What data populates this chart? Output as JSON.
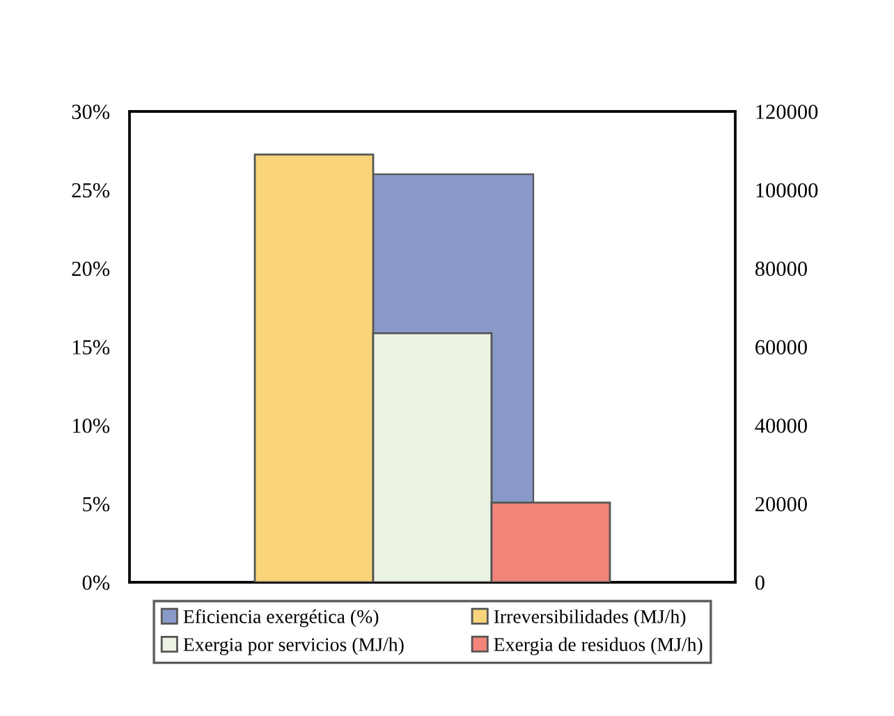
{
  "chart_data": {
    "type": "bar",
    "categories": [
      null
    ],
    "series": [
      {
        "name": "Eficiencia exergética (%)",
        "color": "#8a9ac8",
        "values": [
          26.0
        ]
      },
      {
        "name": "Irreversibilidades (MJ/h)",
        "color": "#f9d47a",
        "values": [
          109000
        ],
        "axis": "y2"
      },
      {
        "name": "Exergia por servicios (MJ/h)",
        "color": "#eaf3e4",
        "values": [
          63500
        ],
        "axis": "y2"
      },
      {
        "name": "Exergia de residuos (MJ/h)",
        "color": "#f2847a",
        "values": [
          20300
        ],
        "axis": "y2"
      }
    ],
    "ylim": [
      0,
      30
    ],
    "yticks": [
      {
        "value": 0,
        "label": "0%"
      },
      {
        "value": 5,
        "label": "5%"
      },
      {
        "value": 10,
        "label": "10%"
      },
      {
        "value": 15,
        "label": "15%"
      },
      {
        "value": 20,
        "label": "20%"
      },
      {
        "value": 25,
        "label": "25%"
      },
      {
        "value": 30,
        "label": "30%"
      }
    ],
    "y2lim": [
      0,
      120000
    ],
    "y2ticks": [
      0,
      20000,
      40000,
      60000,
      80000,
      100000,
      120000
    ],
    "grid": false,
    "legend": "bottom"
  }
}
